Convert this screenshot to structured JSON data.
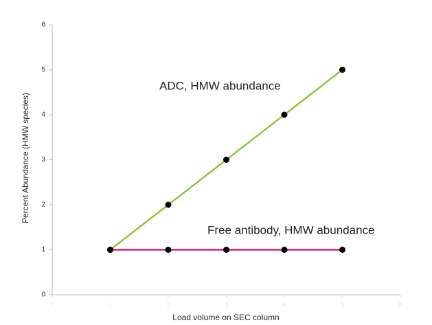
{
  "chart_data": {
    "type": "line",
    "x_label": "Load volume on SEC column",
    "y_label": "Percent Abundance (HMW species)",
    "x": [
      1,
      2,
      3,
      4,
      5
    ],
    "series": [
      {
        "name": "ADC, HMW abundance",
        "color": "#8dc63f",
        "values": [
          1,
          2,
          3,
          4,
          5
        ]
      },
      {
        "name": "Free antibody, HMW abundance",
        "color": "#d6217a",
        "values": [
          1,
          1,
          1,
          1,
          1
        ]
      }
    ],
    "xlim": [
      0,
      6
    ],
    "xticks": [
      0,
      1,
      2,
      3,
      4,
      5,
      6
    ],
    "ylim": [
      0,
      6
    ],
    "yticks": [
      0,
      1,
      2,
      3,
      4,
      5,
      6
    ],
    "marker_color": "#000000"
  }
}
